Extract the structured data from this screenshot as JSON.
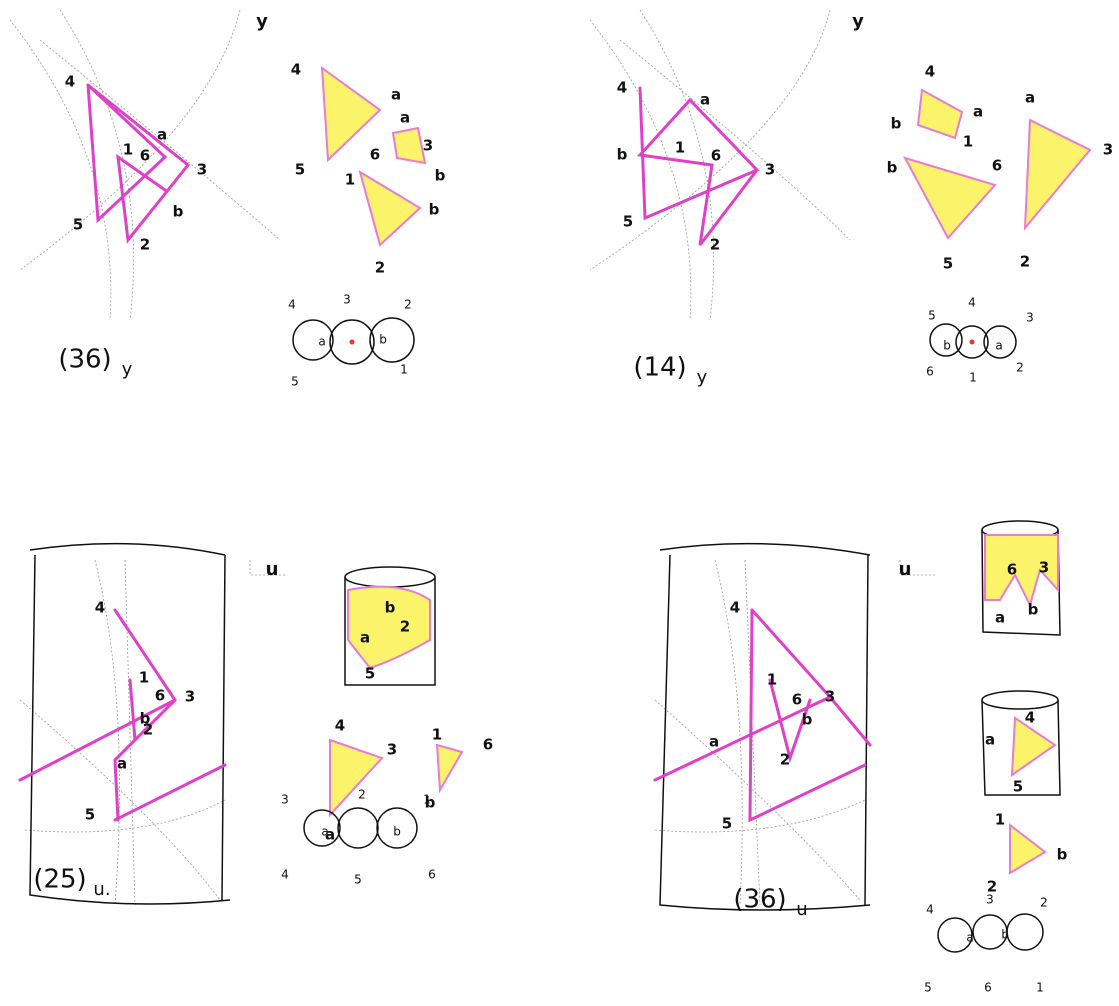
{
  "panels": [
    {
      "caption": "(36)",
      "subscript": "y",
      "corner": "y",
      "sketch": [
        "4",
        "a",
        "1",
        "6",
        "3",
        "5",
        "b",
        "2"
      ],
      "pieces": [
        "4",
        "a",
        "5",
        "a",
        "3",
        "6",
        "b",
        "1",
        "b",
        "2"
      ],
      "graph": [
        "4",
        "3",
        "2",
        "a",
        "b",
        "5",
        "1"
      ]
    },
    {
      "caption": "(14)",
      "subscript": "y",
      "corner": "y",
      "sketch": [
        "4",
        "a",
        "b",
        "1",
        "6",
        "3",
        "5",
        "2"
      ],
      "pieces": [
        "4",
        "a",
        "b",
        "1",
        "b",
        "6",
        "5",
        "a",
        "3",
        "2"
      ],
      "graph": [
        "5",
        "4",
        "3",
        "b",
        "a",
        "6",
        "1",
        "2"
      ]
    },
    {
      "caption": "(25)",
      "subscript": "u.",
      "corner": "u",
      "sketch": [
        "4",
        "1",
        "6",
        "3",
        "b",
        "2",
        "a",
        "5"
      ],
      "pieces": [
        "b",
        "a",
        "2",
        "5",
        "4",
        "3",
        "a",
        "1",
        "6",
        "b"
      ],
      "graph": [
        "3",
        "2",
        "1",
        "a",
        "b",
        "4",
        "5",
        "6"
      ]
    },
    {
      "caption": "(36)",
      "subscript": "u",
      "corner": "u",
      "sketch": [
        "4",
        "1",
        "6",
        "3",
        "b",
        "a",
        "2",
        "5"
      ],
      "pieces": [
        "6",
        "3",
        "a",
        "b",
        "4",
        "a",
        "5",
        "1",
        "b",
        "2"
      ],
      "graph": [
        "4",
        "3",
        "2",
        "a",
        "b",
        "5",
        "6",
        "1"
      ]
    }
  ]
}
